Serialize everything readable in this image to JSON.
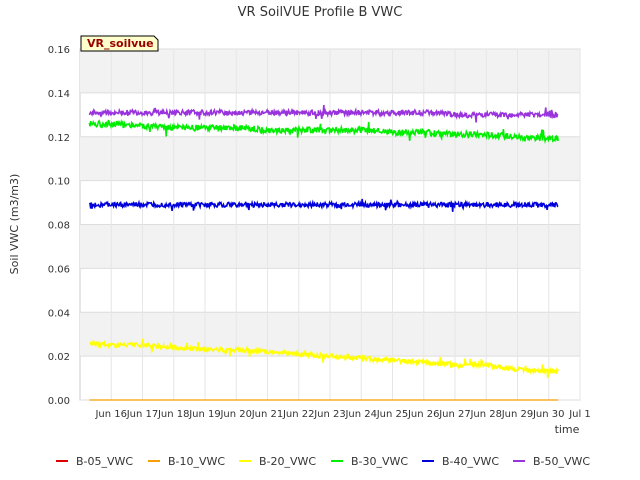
{
  "chart_data": {
    "type": "line",
    "title": "VR SoilVUE Profile B VWC",
    "badge": "VR_soilvue",
    "xlabel": "time",
    "ylabel": "Soil VWC (m3/m3)",
    "ylim": [
      0,
      0.16
    ],
    "yticks": [
      "0.00",
      "0.02",
      "0.04",
      "0.06",
      "0.08",
      "0.10",
      "0.12",
      "0.14",
      "0.16"
    ],
    "xlim": [
      "2024-06-15",
      "2024-07-01"
    ],
    "xticks": [
      "Jun 16",
      "Jun 17",
      "Jun 18",
      "Jun 19",
      "Jun 20",
      "Jun 21",
      "Jun 22",
      "Jun 23",
      "Jun 24",
      "Jun 25",
      "Jun 26",
      "Jun 27",
      "Jun 28",
      "Jun 29",
      "Jun 30",
      "Jul 1"
    ],
    "grid": true,
    "legend_position": "bottom",
    "series": [
      {
        "name": "B-05_VWC",
        "color": "#dd0000",
        "values": []
      },
      {
        "name": "B-10_VWC",
        "color": "#f5a000",
        "values": [
          [
            15.3,
            0.0
          ],
          [
            30.3,
            0.0
          ]
        ]
      },
      {
        "name": "B-20_VWC",
        "color": "#ffff00",
        "values": [
          [
            15.3,
            0.026
          ],
          [
            16.0,
            0.025
          ],
          [
            17.0,
            0.025
          ],
          [
            18.0,
            0.024
          ],
          [
            19.0,
            0.023
          ],
          [
            20.0,
            0.023
          ],
          [
            21.0,
            0.022
          ],
          [
            22.0,
            0.021
          ],
          [
            23.0,
            0.02
          ],
          [
            24.0,
            0.019
          ],
          [
            25.0,
            0.018
          ],
          [
            26.0,
            0.017
          ],
          [
            27.0,
            0.016
          ],
          [
            28.0,
            0.016
          ],
          [
            29.0,
            0.014
          ],
          [
            30.3,
            0.013
          ]
        ]
      },
      {
        "name": "B-30_VWC",
        "color": "#00ee00",
        "values": [
          [
            15.3,
            0.126
          ],
          [
            16.0,
            0.126
          ],
          [
            17.0,
            0.125
          ],
          [
            18.0,
            0.124
          ],
          [
            19.0,
            0.124
          ],
          [
            20.0,
            0.124
          ],
          [
            21.0,
            0.123
          ],
          [
            22.0,
            0.123
          ],
          [
            23.0,
            0.123
          ],
          [
            24.0,
            0.123
          ],
          [
            25.0,
            0.122
          ],
          [
            26.0,
            0.122
          ],
          [
            27.0,
            0.121
          ],
          [
            28.0,
            0.121
          ],
          [
            29.0,
            0.12
          ],
          [
            30.3,
            0.119
          ]
        ]
      },
      {
        "name": "B-40_VWC",
        "color": "#0000dd",
        "values": [
          [
            15.3,
            0.089
          ],
          [
            16.0,
            0.089
          ],
          [
            17.0,
            0.089
          ],
          [
            18.0,
            0.089
          ],
          [
            19.0,
            0.089
          ],
          [
            20.0,
            0.089
          ],
          [
            21.0,
            0.089
          ],
          [
            22.0,
            0.089
          ],
          [
            23.0,
            0.089
          ],
          [
            24.0,
            0.089
          ],
          [
            25.0,
            0.089
          ],
          [
            26.0,
            0.089
          ],
          [
            27.0,
            0.089
          ],
          [
            28.0,
            0.089
          ],
          [
            29.0,
            0.089
          ],
          [
            30.3,
            0.089
          ]
        ]
      },
      {
        "name": "B-50_VWC",
        "color": "#9933dd",
        "values": [
          [
            15.3,
            0.131
          ],
          [
            16.0,
            0.131
          ],
          [
            17.0,
            0.131
          ],
          [
            18.0,
            0.131
          ],
          [
            19.0,
            0.131
          ],
          [
            20.0,
            0.131
          ],
          [
            21.0,
            0.131
          ],
          [
            22.0,
            0.131
          ],
          [
            23.0,
            0.131
          ],
          [
            24.0,
            0.131
          ],
          [
            25.0,
            0.131
          ],
          [
            26.0,
            0.131
          ],
          [
            27.0,
            0.13
          ],
          [
            28.0,
            0.13
          ],
          [
            29.0,
            0.13
          ],
          [
            30.3,
            0.13
          ]
        ]
      }
    ]
  }
}
